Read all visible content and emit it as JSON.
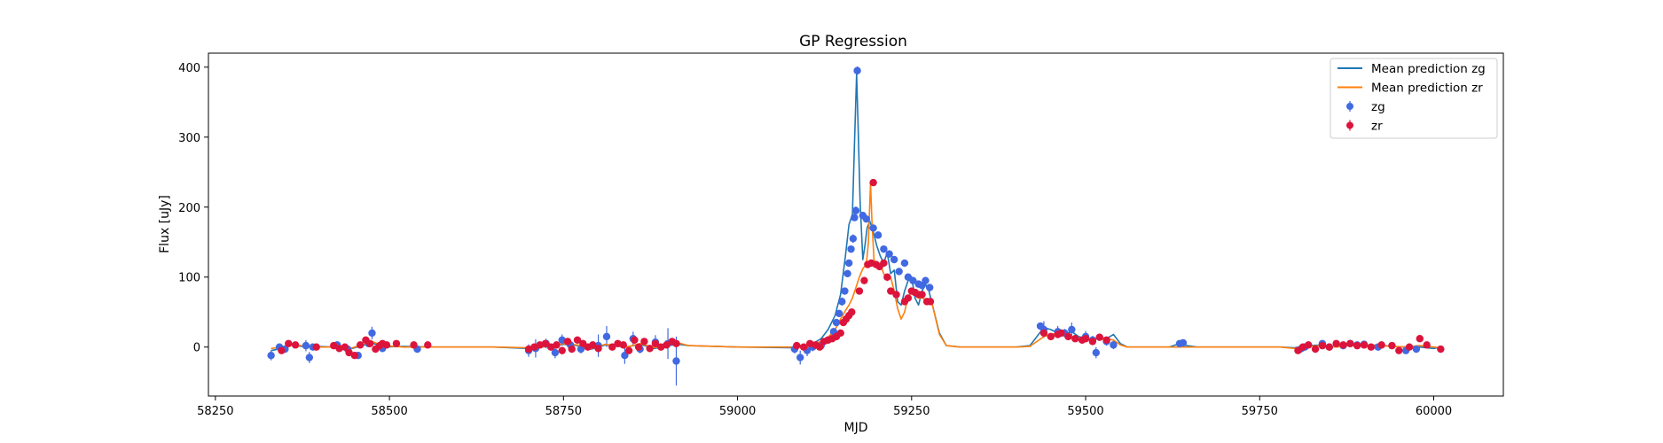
{
  "chart_data": {
    "type": "scatter",
    "title": "GP Regression",
    "xlabel": "MJD",
    "ylabel": "Flux [uJy]",
    "xlim": [
      58240,
      60100
    ],
    "ylim": [
      -70,
      420
    ],
    "xticks": [
      58250,
      58500,
      58750,
      59000,
      59250,
      59500,
      59750,
      60000
    ],
    "yticks": [
      0,
      100,
      200,
      300,
      400
    ],
    "grid": false,
    "legend_position": "top-right",
    "colors": {
      "mean_zg": "#1f77b4",
      "mean_zr": "#ff7f0e",
      "obs_zg": "#4169e1",
      "obs_zr": "#dc143c"
    },
    "legend": [
      {
        "label": "Mean prediction zg",
        "kind": "line",
        "color": "#1f77b4"
      },
      {
        "label": "Mean prediction zr",
        "kind": "line",
        "color": "#ff7f0e"
      },
      {
        "label": "zg",
        "kind": "marker",
        "color": "#4169e1"
      },
      {
        "label": "zr",
        "kind": "marker",
        "color": "#dc143c"
      }
    ],
    "series": [
      {
        "name": "Mean prediction zg",
        "kind": "line",
        "x": [
          58330,
          58345,
          58360,
          58380,
          58395,
          58420,
          58440,
          58460,
          58475,
          58490,
          58520,
          58560,
          58600,
          58650,
          58700,
          58720,
          58750,
          58770,
          58790,
          58810,
          58840,
          58860,
          58880,
          58900,
          58915,
          58930,
          59000,
          59080,
          59090,
          59100,
          59110,
          59120,
          59130,
          59140,
          59148,
          59155,
          59160,
          59165,
          59168,
          59171,
          59173,
          59176,
          59180,
          59183,
          59186,
          59190,
          59195,
          59200,
          59205,
          59210,
          59215,
          59220,
          59225,
          59230,
          59235,
          59240,
          59245,
          59250,
          59255,
          59260,
          59265,
          59270,
          59275,
          59280,
          59290,
          59300,
          59320,
          59400,
          59420,
          59430,
          59440,
          59450,
          59460,
          59470,
          59480,
          59490,
          59500,
          59510,
          59520,
          59530,
          59540,
          59550,
          59560,
          59580,
          59620,
          59635,
          59645,
          59660,
          59700,
          59780,
          59800,
          59820,
          59840,
          59860,
          59880,
          59900,
          59920,
          59940,
          59960,
          59980,
          60000,
          60010
        ],
        "y": [
          -5,
          -2,
          3,
          0,
          1,
          0,
          -4,
          2,
          6,
          0,
          1,
          0,
          0,
          0,
          -2,
          0,
          4,
          2,
          -3,
          3,
          0,
          4,
          -2,
          2,
          4,
          2,
          0,
          -1,
          2,
          3,
          6,
          12,
          25,
          45,
          75,
          130,
          175,
          190,
          290,
          390,
          320,
          210,
          125,
          145,
          170,
          180,
          165,
          145,
          130,
          120,
          135,
          105,
          110,
          65,
          60,
          80,
          95,
          100,
          70,
          60,
          80,
          90,
          80,
          60,
          20,
          2,
          0,
          0,
          2,
          15,
          28,
          25,
          20,
          18,
          22,
          15,
          12,
          10,
          14,
          12,
          18,
          5,
          0,
          0,
          0,
          5,
          2,
          0,
          0,
          0,
          -1,
          2,
          3,
          0,
          3,
          2,
          3,
          1,
          0,
          0,
          -2,
          0
        ]
      },
      {
        "name": "Mean prediction zr",
        "kind": "line",
        "x": [
          58330,
          58345,
          58360,
          58380,
          58395,
          58420,
          58440,
          58460,
          58475,
          58490,
          58520,
          58560,
          58600,
          58650,
          58700,
          58720,
          58750,
          58770,
          58790,
          58810,
          58840,
          58860,
          58880,
          58900,
          58915,
          58930,
          59000,
          59080,
          59090,
          59100,
          59110,
          59120,
          59130,
          59140,
          59148,
          59155,
          59160,
          59165,
          59170,
          59175,
          59180,
          59185,
          59188,
          59191,
          59193,
          59196,
          59200,
          59205,
          59210,
          59215,
          59220,
          59225,
          59230,
          59235,
          59240,
          59245,
          59250,
          59255,
          59260,
          59265,
          59270,
          59275,
          59280,
          59290,
          59300,
          59320,
          59400,
          59420,
          59430,
          59440,
          59450,
          59460,
          59470,
          59480,
          59490,
          59500,
          59510,
          59520,
          59530,
          59540,
          59550,
          59560,
          59580,
          59620,
          59660,
          59700,
          59780,
          59800,
          59820,
          59840,
          59860,
          59880,
          59900,
          59920,
          59940,
          59960,
          59980,
          60000,
          60010
        ],
        "y": [
          -2,
          0,
          4,
          1,
          0,
          0,
          -3,
          3,
          8,
          2,
          0,
          0,
          0,
          0,
          -1,
          0,
          5,
          3,
          -2,
          4,
          0,
          5,
          -1,
          3,
          6,
          2,
          0,
          0,
          2,
          3,
          5,
          8,
          14,
          25,
          40,
          52,
          60,
          70,
          85,
          100,
          112,
          118,
          150,
          235,
          180,
          125,
          115,
          118,
          105,
          95,
          100,
          80,
          55,
          40,
          50,
          72,
          78,
          75,
          70,
          70,
          68,
          66,
          60,
          18,
          2,
          0,
          0,
          1,
          8,
          15,
          18,
          20,
          16,
          15,
          12,
          10,
          12,
          14,
          12,
          10,
          3,
          0,
          0,
          0,
          0,
          0,
          0,
          -2,
          1,
          2,
          0,
          2,
          3,
          2,
          1,
          0,
          2,
          0,
          -1
        ]
      },
      {
        "name": "zg",
        "kind": "points",
        "x": [
          58330,
          58342,
          58350,
          58380,
          58385,
          58390,
          58425,
          58440,
          58455,
          58470,
          58475,
          58490,
          58540,
          58700,
          58710,
          58725,
          58738,
          58748,
          58760,
          58775,
          58800,
          58812,
          58838,
          58850,
          58860,
          58882,
          58900,
          58912,
          59082,
          59090,
          59100,
          59108,
          59120,
          59130,
          59138,
          59142,
          59146,
          59150,
          59154,
          59158,
          59160,
          59163,
          59166,
          59168,
          59170,
          59172,
          59180,
          59185,
          59195,
          59202,
          59210,
          59218,
          59225,
          59232,
          59240,
          59245,
          59252,
          59260,
          59265,
          59270,
          59276,
          59435,
          59440,
          59460,
          59470,
          59480,
          59500,
          59510,
          59515,
          59530,
          59540,
          59635,
          59640,
          59810,
          59815,
          59840,
          59850,
          59870,
          59880,
          59890,
          59900,
          59920,
          59960,
          59975
        ],
        "y": [
          -12,
          0,
          -3,
          2,
          -15,
          0,
          3,
          -3,
          -12,
          5,
          20,
          -2,
          -3,
          -5,
          -2,
          5,
          -8,
          10,
          3,
          -3,
          2,
          15,
          -12,
          12,
          -3,
          7,
          5,
          -20,
          -3,
          -15,
          -5,
          0,
          2,
          10,
          22,
          35,
          48,
          65,
          80,
          105,
          120,
          140,
          155,
          185,
          195,
          395,
          188,
          183,
          170,
          160,
          140,
          133,
          125,
          108,
          120,
          100,
          95,
          90,
          88,
          95,
          85,
          30,
          25,
          22,
          20,
          25,
          15,
          10,
          -8,
          8,
          3,
          5,
          6,
          -2,
          0,
          5,
          0,
          2,
          5,
          3,
          4,
          0,
          -5,
          -3
        ],
        "yerr": [
          7,
          5,
          5,
          8,
          8,
          5,
          5,
          6,
          5,
          5,
          9,
          5,
          5,
          9,
          13,
          7,
          8,
          8,
          6,
          6,
          16,
          15,
          12,
          10,
          6,
          10,
          22,
          35,
          6,
          10,
          8,
          6,
          5,
          5,
          5,
          5,
          5,
          6,
          5,
          5,
          5,
          5,
          6,
          5,
          6,
          6,
          5,
          5,
          5,
          5,
          5,
          5,
          5,
          5,
          5,
          5,
          5,
          5,
          5,
          5,
          5,
          5,
          12,
          8,
          6,
          10,
          8,
          6,
          8,
          6,
          6,
          4,
          4,
          6,
          5,
          5,
          5,
          5,
          5,
          5,
          5,
          5,
          5,
          5
        ]
      },
      {
        "name": "zr",
        "kind": "points",
        "x": [
          58345,
          58355,
          58365,
          58395,
          58420,
          58428,
          58436,
          58442,
          58450,
          58458,
          58466,
          58472,
          58480,
          58486,
          58490,
          58496,
          58510,
          58535,
          58555,
          58700,
          58708,
          58716,
          58724,
          58732,
          58740,
          58748,
          58756,
          58762,
          58770,
          58778,
          58785,
          58792,
          58800,
          58820,
          58828,
          58836,
          58844,
          58852,
          58858,
          58866,
          58874,
          58882,
          58890,
          58898,
          58906,
          58912,
          59085,
          59095,
          59104,
          59112,
          59118,
          59124,
          59130,
          59136,
          59142,
          59148,
          59152,
          59156,
          59160,
          59164,
          59175,
          59182,
          59187,
          59192,
          59195,
          59199,
          59204,
          59210,
          59215,
          59220,
          59228,
          59240,
          59245,
          59250,
          59255,
          59260,
          59265,
          59272,
          59277,
          59440,
          59450,
          59460,
          59465,
          59475,
          59485,
          59495,
          59500,
          59510,
          59520,
          59530,
          59805,
          59812,
          59820,
          59830,
          59840,
          59850,
          59860,
          59870,
          59880,
          59890,
          59900,
          59910,
          59925,
          59940,
          59950,
          59965,
          59980,
          59990,
          60010
        ],
        "y": [
          -5,
          5,
          3,
          0,
          2,
          -2,
          0,
          -8,
          -12,
          3,
          10,
          5,
          -3,
          2,
          5,
          3,
          5,
          3,
          3,
          -3,
          0,
          3,
          5,
          0,
          3,
          -5,
          8,
          -3,
          10,
          5,
          0,
          3,
          -2,
          0,
          5,
          3,
          -5,
          10,
          0,
          8,
          -2,
          5,
          0,
          3,
          8,
          5,
          2,
          0,
          5,
          3,
          0,
          8,
          10,
          12,
          15,
          20,
          35,
          40,
          45,
          50,
          80,
          95,
          118,
          120,
          235,
          118,
          115,
          120,
          100,
          80,
          75,
          65,
          70,
          80,
          78,
          75,
          75,
          65,
          65,
          20,
          15,
          18,
          20,
          15,
          12,
          10,
          12,
          8,
          14,
          10,
          -5,
          0,
          3,
          -3,
          2,
          0,
          5,
          3,
          5,
          2,
          3,
          0,
          3,
          2,
          -5,
          0,
          12,
          3,
          -3
        ],
        "yerr": [
          4,
          4,
          4,
          4,
          4,
          4,
          4,
          4,
          4,
          4,
          4,
          4,
          4,
          4,
          4,
          4,
          4,
          4,
          4,
          5,
          5,
          5,
          5,
          5,
          5,
          5,
          5,
          5,
          5,
          5,
          5,
          5,
          5,
          5,
          5,
          5,
          5,
          5,
          5,
          5,
          5,
          5,
          5,
          5,
          5,
          5,
          4,
          4,
          4,
          4,
          4,
          4,
          4,
          4,
          4,
          4,
          4,
          4,
          4,
          4,
          4,
          4,
          4,
          4,
          4,
          4,
          4,
          4,
          4,
          4,
          4,
          4,
          4,
          4,
          4,
          4,
          4,
          4,
          4,
          5,
          5,
          5,
          5,
          5,
          5,
          5,
          5,
          5,
          5,
          5,
          4,
          4,
          4,
          4,
          4,
          4,
          4,
          4,
          4,
          4,
          4,
          4,
          4,
          4,
          4,
          4,
          4,
          4,
          4
        ]
      }
    ]
  }
}
